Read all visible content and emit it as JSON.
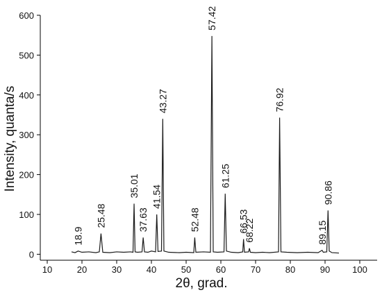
{
  "chart_data": {
    "type": "line",
    "x_label": "2θ, grad.",
    "y_label": "Intensity, quanta/s",
    "xlim": [
      8,
      105
    ],
    "ylim": [
      -15,
      600
    ],
    "xticks": [
      10,
      20,
      30,
      40,
      50,
      60,
      70,
      80,
      90,
      100
    ],
    "yticks": [
      0,
      100,
      200,
      300,
      400,
      500,
      600
    ],
    "series": [
      {
        "color": "#1a1a1a",
        "x": [
          17,
          18,
          18.9,
          20,
          22,
          24,
          25,
          25.48,
          26,
          28,
          30,
          32,
          34,
          34.7,
          35.01,
          35.3,
          36,
          37.3,
          37.63,
          38,
          39,
          40,
          41.2,
          41.54,
          41.9,
          42.9,
          43.27,
          43.6,
          45,
          48,
          50,
          52.2,
          52.48,
          52.8,
          55,
          57,
          57.42,
          57.8,
          59,
          60.9,
          61.25,
          61.6,
          63,
          65,
          66.3,
          66.53,
          66.8,
          68,
          68.22,
          68.5,
          70,
          72,
          74,
          76.6,
          76.92,
          77.3,
          79,
          82,
          85,
          88,
          89.15,
          89.5,
          90.5,
          90.86,
          91.2,
          92,
          94
        ],
        "values": [
          6,
          4,
          8,
          5,
          6,
          4,
          6,
          52,
          5,
          4,
          6,
          5,
          6,
          5,
          127,
          6,
          5,
          6,
          42,
          6,
          5,
          8,
          6,
          100,
          7,
          8,
          340,
          8,
          5,
          4,
          5,
          4,
          42,
          5,
          6,
          5,
          548,
          6,
          5,
          6,
          152,
          8,
          5,
          4,
          6,
          38,
          5,
          6,
          15,
          5,
          4,
          5,
          4,
          6,
          343,
          6,
          5,
          4,
          5,
          4,
          10,
          5,
          6,
          110,
          8,
          4,
          3
        ]
      }
    ],
    "peak_labels": [
      18.9,
      25.48,
      35.01,
      37.63,
      41.54,
      43.27,
      52.48,
      57.42,
      61.25,
      66.53,
      68.22,
      76.92,
      89.15,
      90.86
    ]
  }
}
